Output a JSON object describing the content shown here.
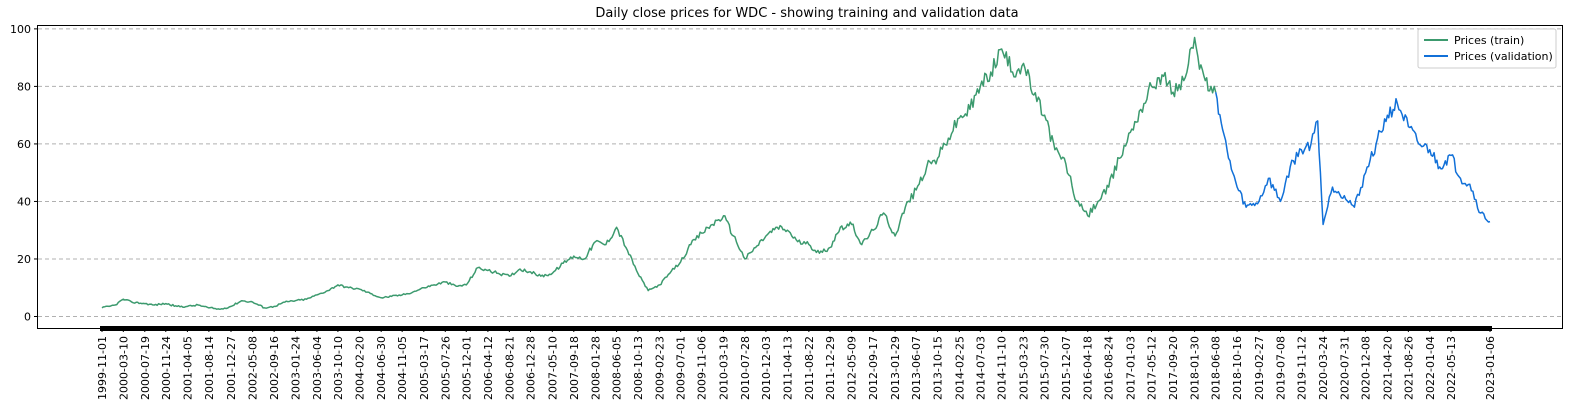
{
  "chart_data": {
    "type": "line",
    "title": "Daily close prices for WDC - showing training and validation data",
    "xlabel": "",
    "ylabel": "",
    "ylim": [
      -4,
      101
    ],
    "grid": "horizontal dashed",
    "legend_position": "top-right",
    "colors": {
      "train": "#3c9a6e",
      "validation": "#1170d8"
    },
    "x_dates": [
      "1999-11-01",
      "2000-03-10",
      "2000-07-19",
      "2000-11-24",
      "2001-04-05",
      "2001-08-14",
      "2001-12-27",
      "2002-05-08",
      "2002-09-16",
      "2003-01-24",
      "2003-06-04",
      "2003-10-10",
      "2004-02-20",
      "2004-06-30",
      "2004-11-05",
      "2005-03-17",
      "2005-07-26",
      "2005-12-01",
      "2006-04-12",
      "2006-08-21",
      "2006-12-28",
      "2007-05-10",
      "2007-09-18",
      "2008-01-28",
      "2008-06-05",
      "2008-10-13",
      "2009-02-23",
      "2009-07-01",
      "2009-11-06",
      "2010-03-19",
      "2010-07-28",
      "2010-12-03",
      "2011-04-13",
      "2011-08-22",
      "2011-12-29",
      "2012-05-09",
      "2012-09-17",
      "2013-01-29",
      "2013-06-07",
      "2013-10-15",
      "2014-02-25",
      "2014-07-03",
      "2014-11-10",
      "2015-03-23",
      "2015-07-30",
      "2015-12-07",
      "2016-04-18",
      "2016-08-24",
      "2017-01-03",
      "2017-05-12",
      "2017-09-20",
      "2018-01-30",
      "2018-06-08",
      "2018-10-16",
      "2019-02-27",
      "2019-07-08",
      "2019-11-12",
      "2020-03-24",
      "2020-07-31",
      "2020-12-08",
      "2021-04-20",
      "2021-08-26",
      "2022-01-04",
      "2022-05-13",
      "2023-01-06"
    ],
    "yticks": [
      0,
      20,
      40,
      60,
      80,
      100
    ],
    "series": [
      {
        "name": "Prices (train)",
        "color": "#3c9a6e",
        "x": [
          "1999-11-01",
          "1999-12-15",
          "2000-01-20",
          "2000-03-10",
          "2000-05-01",
          "2000-07-19",
          "2000-09-15",
          "2000-11-24",
          "2001-02-01",
          "2001-04-05",
          "2001-06-10",
          "2001-08-14",
          "2001-10-20",
          "2001-12-27",
          "2002-03-01",
          "2002-05-08",
          "2002-07-20",
          "2002-09-16",
          "2002-11-20",
          "2003-01-24",
          "2003-04-01",
          "2003-06-04",
          "2003-08-10",
          "2003-10-10",
          "2003-12-15",
          "2004-02-20",
          "2004-04-25",
          "2004-06-30",
          "2004-09-01",
          "2004-11-05",
          "2005-01-10",
          "2005-03-17",
          "2005-05-20",
          "2005-07-26",
          "2005-10-01",
          "2005-12-01",
          "2006-02-10",
          "2006-04-12",
          "2006-06-15",
          "2006-08-21",
          "2006-10-25",
          "2006-12-28",
          "2007-03-01",
          "2007-05-10",
          "2007-07-15",
          "2007-09-18",
          "2007-11-20",
          "2008-01-28",
          "2008-04-01",
          "2008-06-05",
          "2008-08-10",
          "2008-10-13",
          "2008-12-15",
          "2009-02-23",
          "2009-04-25",
          "2009-07-01",
          "2009-09-01",
          "2009-11-06",
          "2010-01-10",
          "2010-03-19",
          "2010-05-20",
          "2010-07-28",
          "2010-10-01",
          "2010-12-03",
          "2011-02-10",
          "2011-04-13",
          "2011-06-15",
          "2011-08-22",
          "2011-10-25",
          "2011-12-29",
          "2012-03-01",
          "2012-05-09",
          "2012-07-10",
          "2012-09-17",
          "2012-11-20",
          "2013-01-29",
          "2013-04-01",
          "2013-06-07",
          "2013-08-10",
          "2013-10-15",
          "2013-12-20",
          "2014-02-25",
          "2014-05-01",
          "2014-07-03",
          "2014-09-05",
          "2014-11-10",
          "2015-01-15",
          "2015-03-23",
          "2015-05-25",
          "2015-07-30",
          "2015-10-01",
          "2015-12-07",
          "2016-02-10",
          "2016-04-18",
          "2016-06-20",
          "2016-08-24",
          "2016-10-28",
          "2017-01-03",
          "2017-03-08",
          "2017-05-12",
          "2017-07-15",
          "2017-09-20",
          "2017-11-25",
          "2018-01-30",
          "2018-03-01",
          "2018-04-05",
          "2018-05-10",
          "2018-06-08"
        ],
        "values": [
          3,
          3.5,
          4,
          6,
          5,
          4.5,
          4,
          4.5,
          3.5,
          3.5,
          4,
          3,
          2.5,
          3.5,
          5.5,
          5,
          3,
          3.5,
          5,
          5.5,
          6,
          7.5,
          9,
          11,
          10,
          9.5,
          8,
          6.5,
          7,
          7.5,
          8.5,
          10,
          11,
          12,
          10.5,
          11,
          17,
          16,
          15,
          14,
          16.5,
          15.5,
          14,
          15,
          18.5,
          21,
          20,
          26,
          25,
          31,
          23,
          15,
          9,
          11,
          15,
          19,
          25,
          29,
          32,
          35,
          28,
          20,
          24,
          28,
          31,
          30,
          26,
          25,
          22,
          24,
          31,
          32,
          25,
          30,
          36,
          28,
          38,
          44,
          52,
          55,
          62,
          69,
          72,
          80,
          85,
          93,
          85,
          88,
          77,
          70,
          58,
          53,
          40,
          35,
          40,
          45,
          55,
          64,
          72,
          80,
          84,
          78,
          82,
          97,
          86,
          82,
          80,
          78
        ]
      },
      {
        "name": "Prices (validation)",
        "color": "#1170d8",
        "x": [
          "2018-06-08",
          "2018-07-20",
          "2018-08-25",
          "2018-10-16",
          "2018-12-10",
          "2019-02-27",
          "2019-04-25",
          "2019-07-08",
          "2019-09-05",
          "2019-11-12",
          "2020-01-10",
          "2020-02-20",
          "2020-03-24",
          "2020-05-20",
          "2020-07-31",
          "2020-10-01",
          "2020-12-08",
          "2021-02-10",
          "2021-04-20",
          "2021-06-20",
          "2021-08-26",
          "2021-10-28",
          "2022-01-04",
          "2022-03-05",
          "2022-05-13",
          "2022-07-10",
          "2022-09-05",
          "2022-11-10",
          "2023-01-06"
        ],
        "values": [
          78,
          65,
          55,
          45,
          38,
          40,
          48,
          40,
          52,
          58,
          60,
          68,
          32,
          45,
          42,
          38,
          50,
          60,
          70,
          74,
          66,
          60,
          58,
          52,
          56,
          48,
          46,
          36,
          33
        ]
      }
    ]
  }
}
